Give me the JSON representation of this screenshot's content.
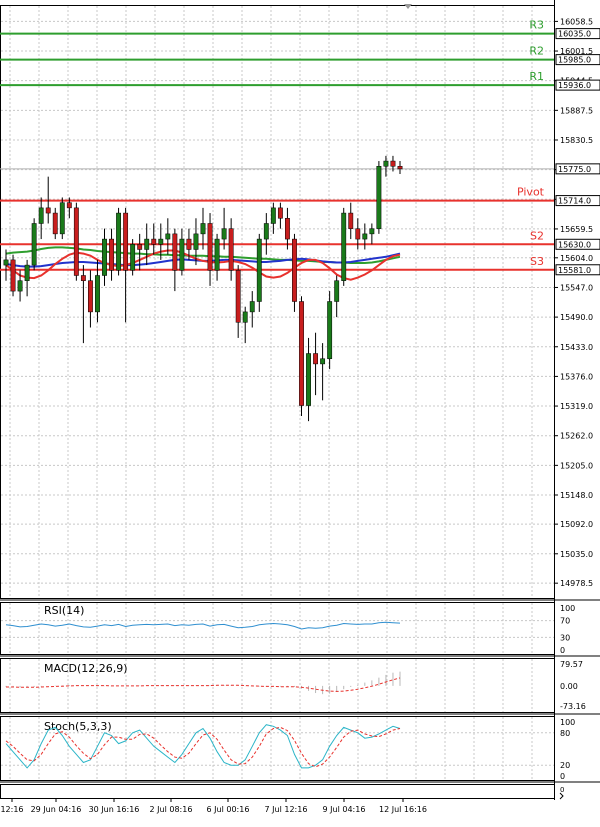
{
  "chart_data": {
    "type": "candlestick",
    "price_axis": {
      "ylim": [
        14950,
        16090
      ],
      "ticks": [
        "16058.5",
        "16001.5",
        "15944.5",
        "15887.5",
        "15830.5",
        "15773.5",
        "15716.5",
        "15659.5",
        "15604.0",
        "15547.0",
        "15490.0",
        "15433.0",
        "15376.0",
        "15319.0",
        "15262.0",
        "15205.0",
        "15148.0",
        "15092.0",
        "15035.0",
        "14978.5"
      ]
    },
    "levels": [
      {
        "name": "R3",
        "value": 16035.0,
        "label": "16035.0",
        "color": "#2e9e2e"
      },
      {
        "name": "R2",
        "value": 15985.0,
        "label": "15985.0",
        "color": "#2e9e2e"
      },
      {
        "name": "R1",
        "value": 15936.0,
        "label": "15936.0",
        "color": "#2e9e2e"
      },
      {
        "name": "Pivot",
        "value": 15714.0,
        "label": "15714.0",
        "color": "#e8322d"
      },
      {
        "name": "S2",
        "value": 15630.0,
        "label": "15630.0",
        "color": "#e8322d"
      },
      {
        "name": "S3",
        "value": 15581.0,
        "label": "15581.0",
        "color": "#e8322d"
      }
    ],
    "last_price": {
      "value": 15775.0,
      "label": "15775.0"
    },
    "candles": [
      [
        15590,
        15620,
        15560,
        15600
      ],
      [
        15600,
        15610,
        15530,
        15540
      ],
      [
        15540,
        15580,
        15520,
        15560
      ],
      [
        15560,
        15600,
        15530,
        15590
      ],
      [
        15590,
        15680,
        15580,
        15670
      ],
      [
        15670,
        15720,
        15640,
        15700
      ],
      [
        15700,
        15760,
        15670,
        15690
      ],
      [
        15690,
        15700,
        15640,
        15650
      ],
      [
        15650,
        15720,
        15640,
        15710
      ],
      [
        15710,
        15720,
        15680,
        15700
      ],
      [
        15700,
        15710,
        15560,
        15570
      ],
      [
        15570,
        15590,
        15440,
        15560
      ],
      [
        15560,
        15580,
        15470,
        15500
      ],
      [
        15500,
        15600,
        15480,
        15570
      ],
      [
        15570,
        15660,
        15550,
        15640
      ],
      [
        15640,
        15660,
        15560,
        15580
      ],
      [
        15580,
        15700,
        15570,
        15690
      ],
      [
        15690,
        15700,
        15480,
        15580
      ],
      [
        15580,
        15640,
        15570,
        15630
      ],
      [
        15630,
        15650,
        15580,
        15620
      ],
      [
        15620,
        15670,
        15590,
        15640
      ],
      [
        15640,
        15670,
        15610,
        15630
      ],
      [
        15630,
        15670,
        15600,
        15640
      ],
      [
        15640,
        15680,
        15610,
        15650
      ],
      [
        15650,
        15660,
        15540,
        15580
      ],
      [
        15580,
        15660,
        15570,
        15640
      ],
      [
        15640,
        15660,
        15600,
        15620
      ],
      [
        15620,
        15680,
        15590,
        15650
      ],
      [
        15650,
        15700,
        15620,
        15670
      ],
      [
        15670,
        15690,
        15550,
        15580
      ],
      [
        15580,
        15650,
        15560,
        15640
      ],
      [
        15640,
        15700,
        15620,
        15660
      ],
      [
        15660,
        15680,
        15560,
        15580
      ],
      [
        15580,
        15590,
        15450,
        15480
      ],
      [
        15480,
        15510,
        15440,
        15500
      ],
      [
        15500,
        15540,
        15470,
        15520
      ],
      [
        15520,
        15650,
        15500,
        15640
      ],
      [
        15640,
        15690,
        15610,
        15670
      ],
      [
        15670,
        15710,
        15650,
        15700
      ],
      [
        15700,
        15710,
        15660,
        15680
      ],
      [
        15680,
        15700,
        15620,
        15640
      ],
      [
        15640,
        15650,
        15500,
        15520
      ],
      [
        15520,
        15530,
        15300,
        15320
      ],
      [
        15320,
        15450,
        15290,
        15420
      ],
      [
        15420,
        15460,
        15340,
        15400
      ],
      [
        15400,
        15440,
        15330,
        15410
      ],
      [
        15410,
        15540,
        15390,
        15520
      ],
      [
        15520,
        15570,
        15490,
        15560
      ],
      [
        15560,
        15700,
        15550,
        15690
      ],
      [
        15690,
        15710,
        15640,
        15660
      ],
      [
        15660,
        15680,
        15620,
        15640
      ],
      [
        15640,
        15670,
        15620,
        15650
      ],
      [
        15650,
        15670,
        15630,
        15660
      ],
      [
        15660,
        15790,
        15650,
        15780
      ],
      [
        15780,
        15800,
        15760,
        15790
      ],
      [
        15790,
        15800,
        15770,
        15780
      ],
      [
        15780,
        15790,
        15765,
        15775
      ]
    ],
    "moving_averages": [
      {
        "color": "#2e9e2e",
        "values": [
          15612,
          15614,
          15615,
          15616,
          15618,
          15621,
          15623,
          15624,
          15624,
          15623,
          15622,
          15620,
          15619,
          15617,
          15616,
          15615,
          15614,
          15613,
          15612,
          15612,
          15611,
          15611,
          15610,
          15610,
          15609,
          15609,
          15608,
          15608,
          15608,
          15607,
          15607,
          15606,
          15606,
          15605,
          15604,
          15603,
          15602,
          15602,
          15601,
          15600,
          15600,
          15599,
          15598,
          15598,
          15597,
          15596,
          15596,
          15595,
          15595,
          15594,
          15594,
          15594,
          15595,
          15597,
          15600,
          15603,
          15606
        ]
      },
      {
        "color": "#2233cc",
        "values": [
          15592,
          15590,
          15588,
          15587,
          15587,
          15588,
          15590,
          15592,
          15594,
          15595,
          15596,
          15596,
          15595,
          15594,
          15593,
          15592,
          15591,
          15590,
          15590,
          15591,
          15592,
          15594,
          15596,
          15598,
          15600,
          15601,
          15600,
          15599,
          15598,
          15598,
          15599,
          15600,
          15600,
          15599,
          15598,
          15597,
          15596,
          15596,
          15597,
          15598,
          15600,
          15601,
          15602,
          15601,
          15599,
          15597,
          15596,
          15595,
          15595,
          15596,
          15598,
          15600,
          15602,
          15604,
          15606,
          15609,
          15612
        ]
      },
      {
        "color": "#e8322d",
        "values": [
          15590,
          15580,
          15570,
          15566,
          15565,
          15570,
          15580,
          15592,
          15602,
          15610,
          15614,
          15612,
          15608,
          15600,
          15594,
          15590,
          15588,
          15590,
          15594,
          15600,
          15606,
          15612,
          15616,
          15618,
          15618,
          15614,
          15608,
          15602,
          15598,
          15596,
          15595,
          15596,
          15598,
          15596,
          15592,
          15585,
          15576,
          15568,
          15566,
          15568,
          15575,
          15585,
          15594,
          15600,
          15600,
          15594,
          15584,
          15572,
          15565,
          15562,
          15566,
          15572,
          15580,
          15590,
          15600,
          15607,
          15610
        ]
      }
    ],
    "x_ticks": [
      "12:16",
      "29 Jun 04:16",
      "30 Jun 16:16",
      "2 Jul 08:16",
      "6 Jul 00:16",
      "7 Jul 12:16",
      "9 Jul 04:16",
      "12 Jul 16:16"
    ],
    "rsi": {
      "label": "RSI(14)",
      "ticks": [
        "100",
        "70",
        "30",
        "0"
      ],
      "levels": [
        30,
        70
      ],
      "values": [
        60,
        58,
        55,
        56,
        59,
        62,
        60,
        57,
        59,
        62,
        58,
        55,
        54,
        57,
        60,
        58,
        61,
        56,
        59,
        60,
        61,
        60,
        61,
        62,
        58,
        60,
        59,
        61,
        62,
        57,
        60,
        61,
        57,
        53,
        54,
        56,
        60,
        62,
        63,
        62,
        60,
        56,
        50,
        53,
        52,
        53,
        57,
        59,
        63,
        62,
        61,
        62,
        62,
        65,
        66,
        65,
        64
      ]
    },
    "macd": {
      "label": "MACD(12,26,9)",
      "ticks": [
        "79.57",
        "0.00",
        "-73.16"
      ],
      "histogram": [
        -3,
        -5,
        -6,
        -6,
        -4,
        -2,
        0,
        1,
        2,
        3,
        2,
        1,
        0,
        -1,
        -1,
        -1,
        0,
        0,
        1,
        1,
        1,
        1,
        2,
        2,
        1,
        1,
        1,
        1,
        2,
        2,
        2,
        2,
        2,
        1,
        -1,
        -2,
        -2,
        -3,
        -3,
        -3,
        -3,
        -4,
        -10,
        -18,
        -26,
        -30,
        -28,
        -22,
        -12,
        -4,
        4,
        12,
        20,
        30,
        40,
        48,
        52
      ],
      "signal": [
        -4,
        -4,
        -5,
        -5,
        -5,
        -4,
        -3,
        -2,
        -1,
        0,
        1,
        1,
        1,
        1,
        1,
        0,
        0,
        0,
        0,
        0,
        1,
        1,
        1,
        1,
        1,
        1,
        1,
        1,
        1,
        1,
        2,
        2,
        2,
        2,
        1,
        0,
        -1,
        -2,
        -2,
        -3,
        -3,
        -3,
        -5,
        -8,
        -12,
        -16,
        -19,
        -20,
        -19,
        -16,
        -12,
        -7,
        -1,
        6,
        14,
        22,
        29
      ]
    },
    "stoch": {
      "label": "Stoch(5,3,3)",
      "ticks": [
        "100",
        "80",
        "20",
        "0"
      ],
      "levels": [
        20,
        80
      ],
      "k": [
        60,
        45,
        30,
        15,
        30,
        60,
        85,
        90,
        75,
        55,
        40,
        25,
        30,
        55,
        80,
        75,
        60,
        65,
        80,
        85,
        70,
        55,
        45,
        35,
        25,
        40,
        60,
        80,
        88,
        70,
        45,
        25,
        20,
        20,
        30,
        55,
        80,
        95,
        92,
        85,
        75,
        40,
        15,
        15,
        20,
        30,
        55,
        75,
        90,
        85,
        80,
        70,
        72,
        78,
        85,
        92,
        88
      ],
      "d": [
        65,
        55,
        42,
        30,
        28,
        40,
        60,
        78,
        82,
        72,
        56,
        42,
        32,
        40,
        58,
        72,
        72,
        68,
        68,
        77,
        78,
        70,
        57,
        45,
        35,
        33,
        42,
        60,
        76,
        80,
        68,
        48,
        30,
        22,
        23,
        35,
        55,
        78,
        88,
        90,
        84,
        66,
        42,
        23,
        17,
        22,
        35,
        53,
        72,
        83,
        85,
        78,
        74,
        73,
        78,
        85,
        88
      ]
    }
  }
}
